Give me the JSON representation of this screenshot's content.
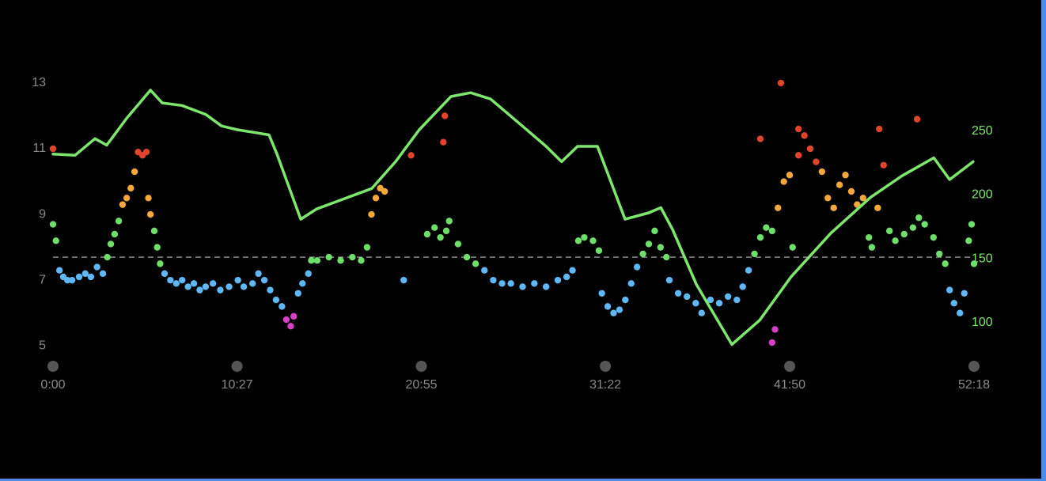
{
  "chart_data": {
    "type": "scatter",
    "xlim": [
      0,
      3138
    ],
    "xticks": [
      {
        "value": 0,
        "label": "0:00"
      },
      {
        "value": 627,
        "label": "10:27"
      },
      {
        "value": 1255,
        "label": "20:55"
      },
      {
        "value": 1882,
        "label": "31:22"
      },
      {
        "value": 2510,
        "label": "41:50"
      },
      {
        "value": 3138,
        "label": "52:18"
      }
    ],
    "ylim": [
      4.5,
      13.6
    ],
    "yticks": [
      5,
      7,
      9,
      11,
      13
    ],
    "y2lim": [
      69,
      303
    ],
    "y2ticks": [
      100,
      150,
      200,
      250
    ],
    "y2_tick_color": "#7ee66d",
    "reference_line": 7.7,
    "color_thresholds": [
      6,
      7.5,
      9,
      10.5
    ],
    "point_colors": [
      "#d63fc8",
      "#5fb8f5",
      "#6ee06a",
      "#f5a93a",
      "#e0452c"
    ],
    "series": [
      {
        "type": "scatter",
        "axis": "y",
        "x": [
          0,
          10,
          22,
          35,
          49,
          65,
          89,
          110,
          129,
          150,
          170,
          185,
          197,
          210,
          224,
          237,
          251,
          265,
          278,
          290,
          305,
          318,
          325,
          332,
          345,
          355,
          365,
          380,
          400,
          420,
          440,
          460,
          480,
          500,
          520,
          545,
          570,
          600,
          630,
          650,
          680,
          700,
          720,
          740,
          760,
          780,
          795,
          810,
          820,
          835,
          850,
          870,
          880,
          900,
          940,
          980,
          1020,
          1050,
          1070,
          1085,
          1100,
          1115,
          1130,
          1195,
          1220,
          1275,
          1300,
          1320,
          1330,
          1335,
          1340,
          1350,
          1380,
          1410,
          1440,
          1470,
          1500,
          1530,
          1560,
          1600,
          1640,
          1680,
          1720,
          1750,
          1770,
          1790,
          1810,
          1840,
          1860,
          1870,
          1890,
          1910,
          1930,
          1950,
          1970,
          1990,
          2010,
          2030,
          2050,
          2070,
          2090,
          2100,
          2130,
          2160,
          2190,
          2210,
          2240,
          2270,
          2300,
          2330,
          2350,
          2370,
          2390,
          2410,
          2410,
          2430,
          2450,
          2450,
          2460,
          2470,
          2480,
          2490,
          2510,
          2520,
          2540,
          2540,
          2560,
          2580,
          2600,
          2620,
          2640,
          2660,
          2680,
          2700,
          2720,
          2740,
          2760,
          2780,
          2790,
          2810,
          2815,
          2830,
          2850,
          2870,
          2900,
          2930,
          2944,
          2950,
          2970,
          3000,
          3020,
          3040,
          3055,
          3070,
          3090,
          3105,
          3120,
          3130,
          3138,
          0
        ],
        "values": [
          8.7,
          8.2,
          7.3,
          7.1,
          7.0,
          7.0,
          7.1,
          7.2,
          7.1,
          7.4,
          7.2,
          7.7,
          8.1,
          8.4,
          8.8,
          9.3,
          9.5,
          9.8,
          10.3,
          10.9,
          10.8,
          10.9,
          9.5,
          9.0,
          8.5,
          8.0,
          7.5,
          7.2,
          7.0,
          6.9,
          7.0,
          6.8,
          6.9,
          6.7,
          6.8,
          6.9,
          6.7,
          6.8,
          7.0,
          6.8,
          6.9,
          7.2,
          7.0,
          6.7,
          6.4,
          6.2,
          5.8,
          5.6,
          5.9,
          6.6,
          6.9,
          7.2,
          7.6,
          7.6,
          7.7,
          7.6,
          7.7,
          7.6,
          8.0,
          9.0,
          9.5,
          9.8,
          9.7,
          7.0,
          10.8,
          8.4,
          8.6,
          8.3,
          11.2,
          12.0,
          8.5,
          8.8,
          8.1,
          7.7,
          7.5,
          7.3,
          7.0,
          6.9,
          6.9,
          6.8,
          6.9,
          6.8,
          7.0,
          7.1,
          7.3,
          8.2,
          8.3,
          8.2,
          7.9,
          6.6,
          6.2,
          6.0,
          6.1,
          6.4,
          6.9,
          7.4,
          7.8,
          8.1,
          8.5,
          8.0,
          7.7,
          7.0,
          6.6,
          6.5,
          6.3,
          6.0,
          6.4,
          6.3,
          6.5,
          6.4,
          6.8,
          7.3,
          7.8,
          8.3,
          11.3,
          8.6,
          8.5,
          5.1,
          5.5,
          9.2,
          13.0,
          10.0,
          10.2,
          8.0,
          10.8,
          11.6,
          11.4,
          11.0,
          10.6,
          10.3,
          9.5,
          9.2,
          9.9,
          10.2,
          9.7,
          9.3,
          9.5,
          8.3,
          8.0,
          9.2,
          11.6,
          10.5,
          8.5,
          8.2,
          8.4,
          8.6,
          11.9,
          8.9,
          8.7,
          8.3,
          7.8,
          7.5,
          6.7,
          6.3,
          6.0,
          6.6,
          8.2,
          8.7,
          7.5,
          11.0
        ]
      },
      {
        "type": "line",
        "axis": "y2",
        "color": "#7ee66d",
        "x": [
          0,
          75,
          143,
          183,
          251,
          332,
          372,
          439,
          520,
          574,
          628,
          682,
          736,
          763,
          844,
          898,
          1086,
          1167,
          1248,
          1356,
          1423,
          1491,
          1599,
          1680,
          1733,
          1787,
          1855,
          1949,
          2030,
          2071,
          2111,
          2192,
          2313,
          2408,
          2515,
          2650,
          2785,
          2893,
          3001,
          3055,
          3135
        ],
        "values": [
          232,
          231,
          244,
          239,
          260,
          282,
          272,
          270,
          263,
          254,
          251,
          249,
          247,
          232,
          181,
          189,
          205,
          226,
          251,
          277,
          280,
          275,
          254,
          238,
          226,
          238,
          238,
          181,
          186,
          190,
          173,
          130,
          83,
          102,
          136,
          170,
          198,
          215,
          229,
          212,
          226
        ]
      }
    ]
  }
}
